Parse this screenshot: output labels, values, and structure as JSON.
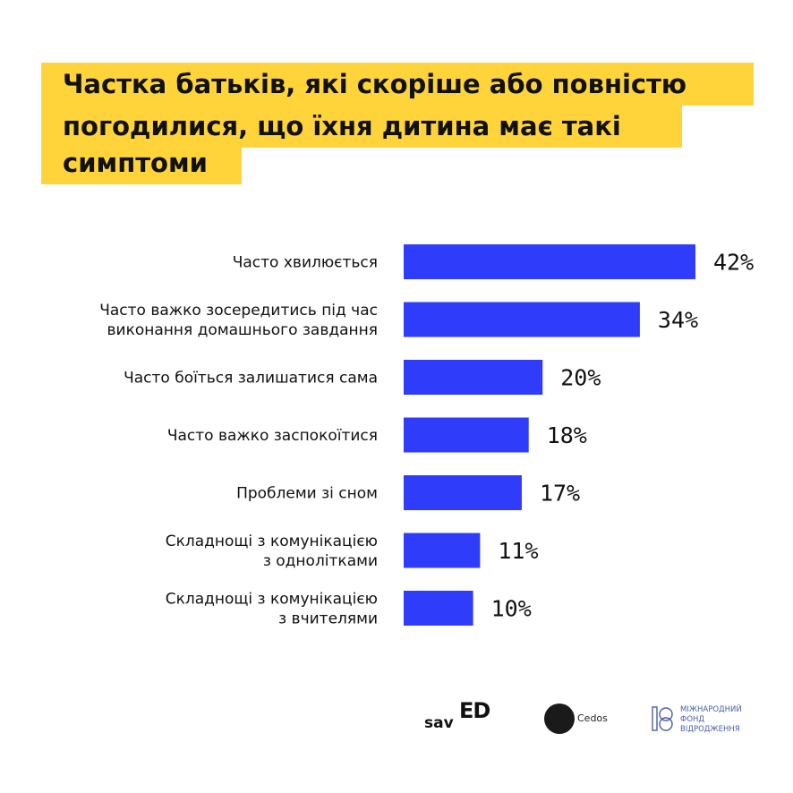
{
  "title_lines": [
    "Частка батьків, які скоріше або повністю",
    "погодилися, що їхня дитина має такі",
    "симптоми"
  ],
  "colors": {
    "title_background": "#ffd43a",
    "bar": "#2f3dfb",
    "text": "#111111",
    "irf_brand": "#4a5fa8"
  },
  "chart_data": {
    "type": "bar",
    "orientation": "horizontal",
    "title": "Частка батьків, які скоріше або повністю погодилися, що їхня дитина має такі симптоми",
    "categories": [
      [
        "Часто хвилюється"
      ],
      [
        "Часто важко зосередитись під час",
        "виконання домашнього завдання"
      ],
      [
        "Часто боїться залишатися сама"
      ],
      [
        "Часто важко заспокоїтися"
      ],
      [
        "Проблеми зі сном"
      ],
      [
        "Складнощі з комунікацією",
        "з однолітками"
      ],
      [
        "Складнощі з комунікацією",
        "з вчителями"
      ]
    ],
    "values": [
      42,
      34,
      20,
      18,
      17,
      11,
      10
    ],
    "value_labels": [
      "42%",
      "34%",
      "20%",
      "18%",
      "17%",
      "11%",
      "10%"
    ],
    "unit": "%",
    "xlim": [
      0,
      42
    ],
    "grid": false,
    "legend": "none"
  },
  "logos": {
    "saved": {
      "part1": "sav",
      "part2": "ED"
    },
    "cedos": {
      "label": "Cedos"
    },
    "irf": {
      "lines": [
        "МІЖНАРОДНИЙ",
        "ФОНД",
        "ВІДРОДЖЕННЯ"
      ],
      "icon": "irf-logo-mark"
    }
  }
}
